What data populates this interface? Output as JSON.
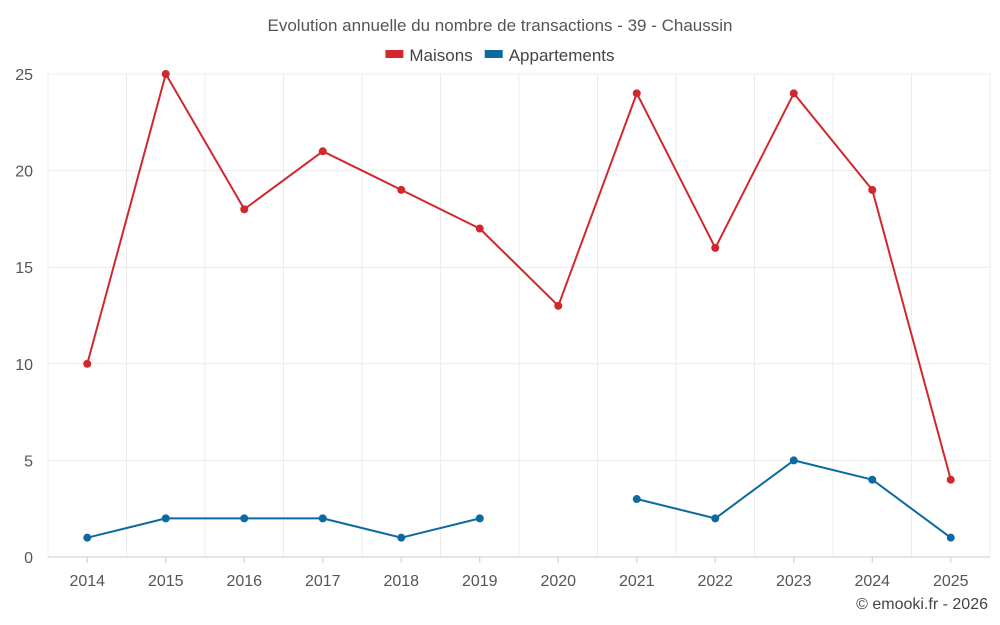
{
  "chart_data": {
    "type": "line",
    "title": "Evolution annuelle du nombre de transactions - 39 - Chaussin",
    "categories": [
      "2014",
      "2015",
      "2016",
      "2017",
      "2018",
      "2019",
      "2020",
      "2021",
      "2022",
      "2023",
      "2024",
      "2025"
    ],
    "series": [
      {
        "name": "Maisons",
        "color": "#d0282e",
        "values": [
          10,
          25,
          18,
          21,
          19,
          17,
          13,
          24,
          16,
          24,
          19,
          4
        ]
      },
      {
        "name": "Appartements",
        "color": "#0d6aa0",
        "values": [
          1,
          2,
          2,
          2,
          1,
          2,
          null,
          3,
          2,
          5,
          4,
          1
        ]
      }
    ],
    "ylim": [
      0,
      25
    ],
    "yticks": [
      0,
      5,
      10,
      15,
      20,
      25
    ],
    "xlabel": "",
    "ylabel": "",
    "legend_position": "top-center",
    "grid": true
  },
  "credit": "© emooki.fr - 2026"
}
